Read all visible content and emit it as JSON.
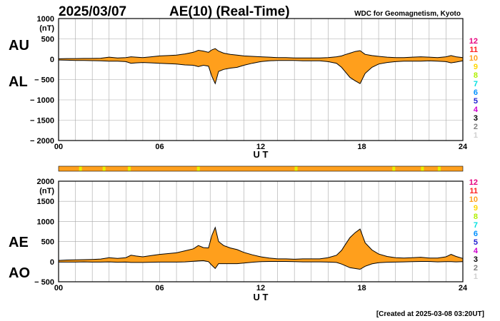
{
  "header": {
    "date": "2025/03/07",
    "title": "AE(10) (Real-Time)",
    "source": "WDC for Geomagnetism, Kyoto"
  },
  "footer": {
    "created": "[Created at 2025-03-08 03:20UT]"
  },
  "colors": {
    "fill": "#ff9f1c",
    "stroke": "#000000",
    "grid": "#a8a8a8",
    "bar": "#ff9f1c",
    "bar_marker": "#e8f000"
  },
  "station_legend": [
    {
      "label": "12",
      "color": "#e6007e"
    },
    {
      "label": "11",
      "color": "#ff2020"
    },
    {
      "label": "10",
      "color": "#ff9f1c"
    },
    {
      "label": "9",
      "color": "#ffd700"
    },
    {
      "label": "8",
      "color": "#b0f000"
    },
    {
      "label": "7",
      "color": "#00e0e0"
    },
    {
      "label": "6",
      "color": "#0090ff"
    },
    {
      "label": "5",
      "color": "#2020d0"
    },
    {
      "label": "4",
      "color": "#d000d0"
    },
    {
      "label": "3",
      "color": "#000000"
    },
    {
      "label": "2",
      "color": "#808080"
    },
    {
      "label": "1",
      "color": "#d0d0d0"
    }
  ],
  "station_bar": {
    "base_count": 10,
    "markers_hours": [
      1.3,
      2.7,
      4.2,
      8.3,
      14.1,
      19.9,
      21.6,
      22.6
    ]
  },
  "chart_data": [
    {
      "type": "area",
      "name": "AU/AL",
      "series_labels": [
        "AU",
        "AL"
      ],
      "xlabel": "U T",
      "ylabel_unit": "(nT)",
      "xlim": [
        0,
        24
      ],
      "ylim": [
        -2000,
        1000
      ],
      "xticks": [
        0,
        6,
        12,
        18,
        24
      ],
      "xtick_labels": [
        "00",
        "06",
        "12",
        "18",
        "24"
      ],
      "yticks": [
        1000,
        500,
        0,
        -500,
        -1000,
        -1500,
        -2000
      ],
      "ytick_labels": [
        "1000",
        "500",
        "0",
        "− 500",
        "− 1000",
        "− 1500",
        "− 2000"
      ],
      "grid": true,
      "x": [
        0,
        0.5,
        1,
        1.5,
        2,
        2.5,
        3,
        3.5,
        4,
        4.3,
        4.6,
        5,
        5.5,
        6,
        6.5,
        7,
        7.5,
        8,
        8.3,
        8.6,
        8.9,
        9.1,
        9.3,
        9.5,
        9.8,
        10.2,
        10.6,
        11,
        11.5,
        12,
        12.5,
        13,
        13.5,
        14,
        14.5,
        15,
        15.5,
        16,
        16.5,
        16.8,
        17,
        17.3,
        17.6,
        17.9,
        18.2,
        18.6,
        19,
        19.5,
        20,
        20.5,
        21,
        21.5,
        22,
        22.5,
        23,
        23.3,
        23.6,
        24
      ],
      "upper": [
        10,
        15,
        15,
        20,
        20,
        25,
        50,
        30,
        40,
        60,
        50,
        40,
        60,
        80,
        90,
        100,
        130,
        170,
        220,
        200,
        170,
        230,
        260,
        200,
        150,
        120,
        100,
        80,
        70,
        60,
        50,
        40,
        40,
        30,
        30,
        30,
        30,
        40,
        60,
        80,
        110,
        150,
        190,
        210,
        120,
        90,
        70,
        50,
        40,
        40,
        50,
        60,
        50,
        40,
        60,
        90,
        60,
        40
      ],
      "lower": [
        -20,
        -25,
        -30,
        -30,
        -35,
        -40,
        -50,
        -50,
        -60,
        -100,
        -90,
        -80,
        -90,
        -100,
        -110,
        -120,
        -140,
        -150,
        -180,
        -150,
        -170,
        -420,
        -600,
        -300,
        -250,
        -220,
        -200,
        -150,
        -100,
        -60,
        -40,
        -30,
        -30,
        -30,
        -40,
        -40,
        -40,
        -60,
        -100,
        -200,
        -300,
        -450,
        -530,
        -600,
        -350,
        -200,
        -120,
        -80,
        -60,
        -50,
        -50,
        -50,
        -40,
        -50,
        -60,
        -90,
        -70,
        -40
      ]
    },
    {
      "type": "area",
      "name": "AE/AO",
      "series_labels": [
        "AE",
        "AO"
      ],
      "xlabel": "U T",
      "ylabel_unit": "(nT)",
      "xlim": [
        0,
        24
      ],
      "ylim": [
        -500,
        2000
      ],
      "xticks": [
        0,
        6,
        12,
        18,
        24
      ],
      "xtick_labels": [
        "00",
        "06",
        "12",
        "18",
        "24"
      ],
      "yticks": [
        2000,
        1500,
        1000,
        500,
        0,
        -500
      ],
      "ytick_labels": [
        "2000",
        "1500",
        "1000",
        "500",
        "0",
        "− 500"
      ],
      "grid": true,
      "x": [
        0,
        0.5,
        1,
        1.5,
        2,
        2.5,
        3,
        3.5,
        4,
        4.3,
        4.6,
        5,
        5.5,
        6,
        6.5,
        7,
        7.5,
        8,
        8.3,
        8.6,
        8.9,
        9.1,
        9.3,
        9.5,
        9.8,
        10.2,
        10.6,
        11,
        11.5,
        12,
        12.5,
        13,
        13.5,
        14,
        14.5,
        15,
        15.5,
        16,
        16.5,
        16.8,
        17,
        17.3,
        17.6,
        17.9,
        18.2,
        18.6,
        19,
        19.5,
        20,
        20.5,
        21,
        21.5,
        22,
        22.5,
        23,
        23.3,
        23.6,
        24
      ],
      "upper": [
        30,
        40,
        45,
        50,
        55,
        65,
        100,
        80,
        100,
        160,
        140,
        120,
        150,
        180,
        200,
        220,
        270,
        320,
        400,
        350,
        340,
        650,
        850,
        500,
        400,
        340,
        300,
        230,
        170,
        120,
        90,
        70,
        70,
        60,
        70,
        70,
        70,
        100,
        160,
        280,
        410,
        600,
        720,
        810,
        470,
        290,
        190,
        130,
        100,
        90,
        100,
        110,
        90,
        90,
        120,
        180,
        130,
        80
      ],
      "lower": [
        -10,
        -10,
        -10,
        -5,
        -10,
        -10,
        -5,
        -15,
        -10,
        -20,
        -20,
        -20,
        -15,
        -10,
        -10,
        -10,
        -5,
        10,
        20,
        25,
        0,
        -90,
        -170,
        -50,
        -50,
        -50,
        -50,
        -35,
        -15,
        0,
        5,
        5,
        5,
        0,
        -5,
        -5,
        -5,
        -10,
        -20,
        -60,
        -95,
        -150,
        -170,
        -190,
        -115,
        -55,
        -25,
        -15,
        -10,
        -5,
        0,
        5,
        5,
        -5,
        0,
        0,
        -5,
        0
      ]
    }
  ]
}
